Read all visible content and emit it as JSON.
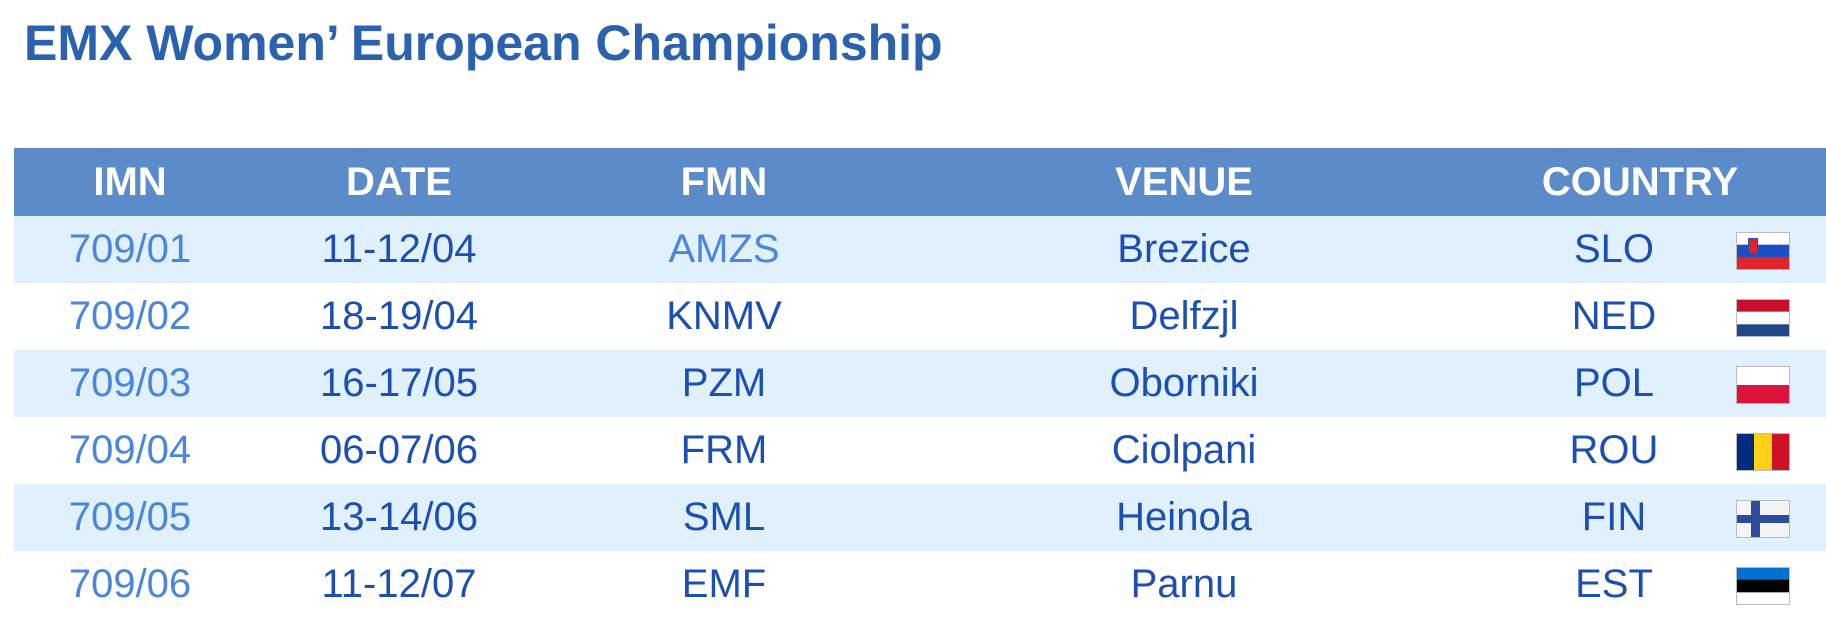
{
  "header": {
    "title": "EMX Women’ European Championship"
  },
  "table": {
    "columns": [
      "IMN",
      "DATE",
      "FMN",
      "VENUE",
      "COUNTRY"
    ],
    "rows": [
      [
        "709/01",
        "11-12/04",
        "AMZS",
        "Brezice",
        "SLO"
      ],
      [
        "709/02",
        "18-19/04",
        "KNMV",
        "Delfzjl",
        "NED"
      ],
      [
        "709/03",
        "16-17/05",
        "PZM",
        "Oborniki",
        "POL"
      ],
      [
        "709/04",
        "06-07/06",
        "FRM",
        "Ciolpani",
        "ROU"
      ],
      [
        "709/05",
        "13-14/06",
        "SML",
        "Heinola",
        "FIN"
      ],
      [
        "709/06",
        "11-12/07",
        "EMF",
        "Parnu",
        "EST"
      ]
    ]
  }
}
